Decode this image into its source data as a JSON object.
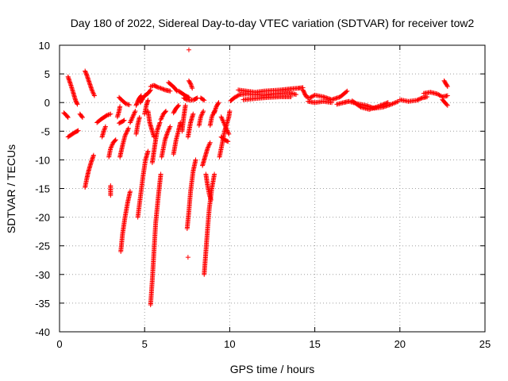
{
  "chart_data": {
    "type": "scatter",
    "title": "Day 180 of 2022, Sidereal Day-to-day VTEC variation (SDTVAR) for receiver tow2",
    "xlabel": "GPS time / hours",
    "ylabel": "SDTVAR / TECUs",
    "xlim": [
      0,
      25
    ],
    "ylim": [
      -40,
      10
    ],
    "xticks": [
      0,
      5,
      10,
      15,
      20,
      25
    ],
    "yticks": [
      10,
      5,
      0,
      -5,
      -10,
      -15,
      -20,
      -25,
      -30,
      -35,
      -40
    ],
    "grid": true,
    "marker": "+",
    "color": "#ff0000",
    "series": [
      {
        "name": "SDTVAR",
        "segments": [
          [
            [
              0.25,
              -1.8
            ],
            [
              0.4,
              -2.2
            ],
            [
              0.5,
              -2.6
            ]
          ],
          [
            [
              0.5,
              4.5
            ],
            [
              0.65,
              3.2
            ],
            [
              0.8,
              1.8
            ],
            [
              0.95,
              0.3
            ],
            [
              1.05,
              -0.3
            ]
          ],
          [
            [
              0.5,
              -6.0
            ],
            [
              0.7,
              -5.6
            ],
            [
              0.9,
              -5.2
            ],
            [
              1.1,
              -4.9
            ]
          ],
          [
            [
              1.2,
              -2.0
            ],
            [
              1.35,
              -2.6
            ]
          ],
          [
            [
              1.5,
              5.5
            ],
            [
              1.6,
              4.8
            ],
            [
              1.75,
              3.5
            ],
            [
              1.9,
              2.2
            ],
            [
              2.05,
              1.2
            ]
          ],
          [
            [
              1.5,
              -14.8
            ],
            [
              1.6,
              -13.3
            ],
            [
              1.7,
              -12.0
            ],
            [
              1.85,
              -10.5
            ],
            [
              2.0,
              -9.2
            ]
          ],
          [
            [
              2.2,
              -3.5
            ],
            [
              2.4,
              -3.0
            ],
            [
              2.6,
              -2.6
            ],
            [
              2.8,
              -2.2
            ],
            [
              3.0,
              -2.0
            ]
          ],
          [
            [
              2.5,
              -6.0
            ],
            [
              2.6,
              -5.0
            ],
            [
              2.7,
              -4.2
            ]
          ],
          [
            [
              2.9,
              -9.5
            ],
            [
              3.0,
              -8.0
            ],
            [
              3.15,
              -7.0
            ],
            [
              3.3,
              -6.5
            ]
          ],
          [
            [
              3.0,
              -14.5
            ],
            [
              3.0,
              -16.2
            ]
          ],
          [
            [
              3.4,
              -2.5
            ],
            [
              3.5,
              -1.5
            ],
            [
              3.55,
              -0.7
            ]
          ],
          [
            [
              3.5,
              -3.6
            ],
            [
              3.7,
              -3.3
            ],
            [
              3.8,
              -3.1
            ]
          ],
          [
            [
              3.5,
              0.9
            ],
            [
              3.7,
              0.3
            ],
            [
              3.9,
              -0.2
            ],
            [
              4.1,
              -0.4
            ]
          ],
          [
            [
              3.55,
              -9.5
            ],
            [
              3.7,
              -7.5
            ],
            [
              3.85,
              -5.8
            ],
            [
              4.05,
              -4.5
            ]
          ],
          [
            [
              3.6,
              -26.0
            ],
            [
              3.7,
              -23.0
            ],
            [
              3.85,
              -20.0
            ],
            [
              4.0,
              -17.5
            ],
            [
              4.15,
              -15.5
            ]
          ],
          [
            [
              4.15,
              -3.5
            ],
            [
              4.3,
              -2.5
            ],
            [
              4.45,
              -1.5
            ]
          ],
          [
            [
              4.5,
              -0.5
            ],
            [
              4.6,
              0.2
            ],
            [
              4.7,
              0.8
            ],
            [
              4.8,
              1.2
            ]
          ],
          [
            [
              4.5,
              -5.5
            ],
            [
              4.6,
              -3.8
            ],
            [
              4.7,
              -2.6
            ]
          ],
          [
            [
              4.6,
              -20.0
            ],
            [
              4.75,
              -16.5
            ],
            [
              4.9,
              -13.0
            ],
            [
              5.05,
              -10.0
            ],
            [
              5.2,
              -8.5
            ]
          ],
          [
            [
              4.75,
              0.0
            ],
            [
              4.9,
              0.8
            ],
            [
              5.05,
              1.3
            ],
            [
              5.2,
              1.6
            ],
            [
              5.35,
              2.2
            ]
          ],
          [
            [
              5.0,
              -2.0
            ],
            [
              5.1,
              -0.5
            ],
            [
              5.2,
              0.4
            ]
          ],
          [
            [
              5.2,
              -1.5
            ],
            [
              5.3,
              -3.5
            ],
            [
              5.45,
              -5.0
            ],
            [
              5.55,
              -6.0
            ]
          ],
          [
            [
              5.35,
              -35.3
            ],
            [
              5.45,
              -31.0
            ],
            [
              5.55,
              -26.0
            ],
            [
              5.65,
              -21.0
            ],
            [
              5.8,
              -16.5
            ],
            [
              5.95,
              -12.5
            ]
          ],
          [
            [
              5.45,
              -10.5
            ],
            [
              5.55,
              -8.5
            ],
            [
              5.65,
              -6.5
            ],
            [
              5.75,
              -4.8
            ],
            [
              5.9,
              -3.5
            ]
          ],
          [
            [
              5.35,
              2.8
            ],
            [
              5.55,
              3.0
            ],
            [
              5.75,
              2.7
            ],
            [
              5.95,
              2.5
            ],
            [
              6.2,
              2.2
            ],
            [
              6.5,
              2.0
            ]
          ],
          [
            [
              5.95,
              -3.0
            ],
            [
              6.1,
              -2.0
            ],
            [
              6.25,
              -1.5
            ]
          ],
          [
            [
              6.0,
              -9.5
            ],
            [
              6.1,
              -8.0
            ],
            [
              6.2,
              -6.5
            ],
            [
              6.35,
              -5.2
            ],
            [
              6.5,
              -4.2
            ]
          ],
          [
            [
              6.4,
              3.5
            ],
            [
              6.6,
              3.0
            ],
            [
              6.75,
              2.6
            ],
            [
              6.9,
              2.0
            ]
          ],
          [
            [
              6.7,
              -1.8
            ],
            [
              6.85,
              -1.0
            ],
            [
              7.0,
              -0.5
            ]
          ],
          [
            [
              6.7,
              -9.0
            ],
            [
              6.85,
              -6.5
            ],
            [
              7.0,
              -4.8
            ],
            [
              7.1,
              -3.5
            ]
          ],
          [
            [
              7.0,
              2.0
            ],
            [
              7.2,
              1.6
            ],
            [
              7.4,
              1.2
            ],
            [
              7.6,
              0.9
            ]
          ],
          [
            [
              7.2,
              -5.0
            ],
            [
              7.3,
              -2.5
            ],
            [
              7.4,
              -0.5
            ]
          ],
          [
            [
              7.3,
              0.8
            ],
            [
              7.5,
              0.5
            ],
            [
              7.7,
              0.4
            ],
            [
              7.9,
              0.5
            ],
            [
              8.1,
              0.8
            ]
          ],
          [
            [
              7.5,
              -22.0
            ],
            [
              7.6,
              -19.0
            ],
            [
              7.7,
              -15.5
            ],
            [
              7.85,
              -12.0
            ],
            [
              8.0,
              -10.0
            ]
          ],
          [
            [
              7.55,
              -6.0
            ],
            [
              7.7,
              -3.5
            ],
            [
              7.85,
              -2.0
            ]
          ],
          [
            [
              7.6,
              3.8
            ],
            [
              7.7,
              3.3
            ],
            [
              7.8,
              2.5
            ]
          ],
          [
            [
              7.6,
              9.2
            ]
          ],
          [
            [
              7.55,
              -27.0
            ]
          ],
          [
            [
              8.2,
              -4.0
            ],
            [
              8.3,
              -2.5
            ],
            [
              8.45,
              -1.5
            ]
          ],
          [
            [
              8.3,
              0.8
            ],
            [
              8.4,
              0.6
            ],
            [
              8.5,
              0.4
            ]
          ],
          [
            [
              8.4,
              -11.0
            ],
            [
              8.55,
              -9.5
            ],
            [
              8.7,
              -8.0
            ],
            [
              8.85,
              -7.0
            ]
          ],
          [
            [
              8.5,
              -30.0
            ],
            [
              8.6,
              -26.0
            ],
            [
              8.7,
              -22.0
            ],
            [
              8.8,
              -18.5
            ],
            [
              8.95,
              -15.0
            ],
            [
              9.1,
              -12.5
            ]
          ],
          [
            [
              8.6,
              -12.5
            ],
            [
              8.7,
              -14.5
            ],
            [
              8.8,
              -16.0
            ],
            [
              8.9,
              -17.0
            ]
          ],
          [
            [
              8.85,
              -4.0
            ],
            [
              8.95,
              -2.5
            ],
            [
              9.1,
              -1.5
            ]
          ],
          [
            [
              9.1,
              -1.8
            ],
            [
              9.2,
              -0.8
            ],
            [
              9.35,
              0.0
            ]
          ],
          [
            [
              9.4,
              -9.5
            ],
            [
              9.5,
              -8.0
            ],
            [
              9.6,
              -6.5
            ],
            [
              9.7,
              -5.0
            ],
            [
              9.85,
              -3.5
            ],
            [
              9.95,
              -2.5
            ],
            [
              10.0,
              -1.5
            ]
          ],
          [
            [
              9.5,
              -2.5
            ],
            [
              9.65,
              -3.5
            ],
            [
              9.8,
              -4.5
            ],
            [
              9.95,
              -5.5
            ]
          ],
          [
            [
              9.5,
              -6.0
            ],
            [
              9.7,
              -6.5
            ],
            [
              9.9,
              -6.8
            ]
          ],
          [
            [
              10.05,
              0.3
            ],
            [
              10.3,
              0.9
            ],
            [
              10.6,
              1.4
            ],
            [
              11.0,
              1.5
            ],
            [
              11.5,
              1.4
            ],
            [
              12.0,
              1.3
            ],
            [
              12.5,
              1.5
            ],
            [
              13.0,
              1.6
            ],
            [
              13.5,
              1.7
            ],
            [
              13.9,
              1.4
            ]
          ],
          [
            [
              10.5,
              2.2
            ],
            [
              11.0,
              2.0
            ],
            [
              11.5,
              1.8
            ],
            [
              12.0,
              2.0
            ],
            [
              12.5,
              2.1
            ],
            [
              13.0,
              2.2
            ],
            [
              13.6,
              2.4
            ],
            [
              14.0,
              2.5
            ],
            [
              14.3,
              2.6
            ]
          ],
          [
            [
              10.8,
              0.5
            ],
            [
              11.5,
              0.7
            ],
            [
              12.3,
              0.9
            ],
            [
              13.0,
              1.0
            ],
            [
              13.6,
              1.0
            ]
          ],
          [
            [
              14.3,
              2.2
            ],
            [
              14.5,
              1.0
            ],
            [
              14.7,
              0.8
            ],
            [
              15.0,
              1.3
            ],
            [
              15.5,
              1.0
            ],
            [
              16.0,
              0.5
            ],
            [
              16.5,
              1.0
            ],
            [
              16.9,
              2.0
            ]
          ],
          [
            [
              14.6,
              0.2
            ],
            [
              15.0,
              0.0
            ],
            [
              15.5,
              0.2
            ],
            [
              16.0,
              0.0
            ]
          ],
          [
            [
              16.3,
              -0.3
            ],
            [
              16.7,
              0.0
            ],
            [
              17.0,
              0.2
            ],
            [
              17.5,
              -0.2
            ],
            [
              18.0,
              -0.5
            ],
            [
              18.5,
              -1.0
            ],
            [
              19.0,
              -0.8
            ],
            [
              19.5,
              -0.3
            ],
            [
              19.9,
              0.2
            ]
          ],
          [
            [
              17.2,
              0.3
            ],
            [
              17.7,
              -0.8
            ],
            [
              18.2,
              -1.2
            ],
            [
              18.8,
              -0.6
            ],
            [
              19.3,
              0.0
            ]
          ],
          [
            [
              20.0,
              0.5
            ],
            [
              20.5,
              0.2
            ],
            [
              21.0,
              0.4
            ],
            [
              21.3,
              0.8
            ],
            [
              21.6,
              1.0
            ]
          ],
          [
            [
              21.4,
              1.6
            ],
            [
              21.8,
              1.8
            ],
            [
              22.2,
              1.5
            ],
            [
              22.5,
              1.0
            ],
            [
              22.8,
              1.2
            ]
          ],
          [
            [
              22.5,
              0.5
            ],
            [
              22.7,
              -0.2
            ],
            [
              22.8,
              -0.5
            ]
          ],
          [
            [
              22.6,
              3.8
            ],
            [
              22.7,
              3.3
            ],
            [
              22.8,
              2.8
            ]
          ]
        ]
      }
    ]
  }
}
